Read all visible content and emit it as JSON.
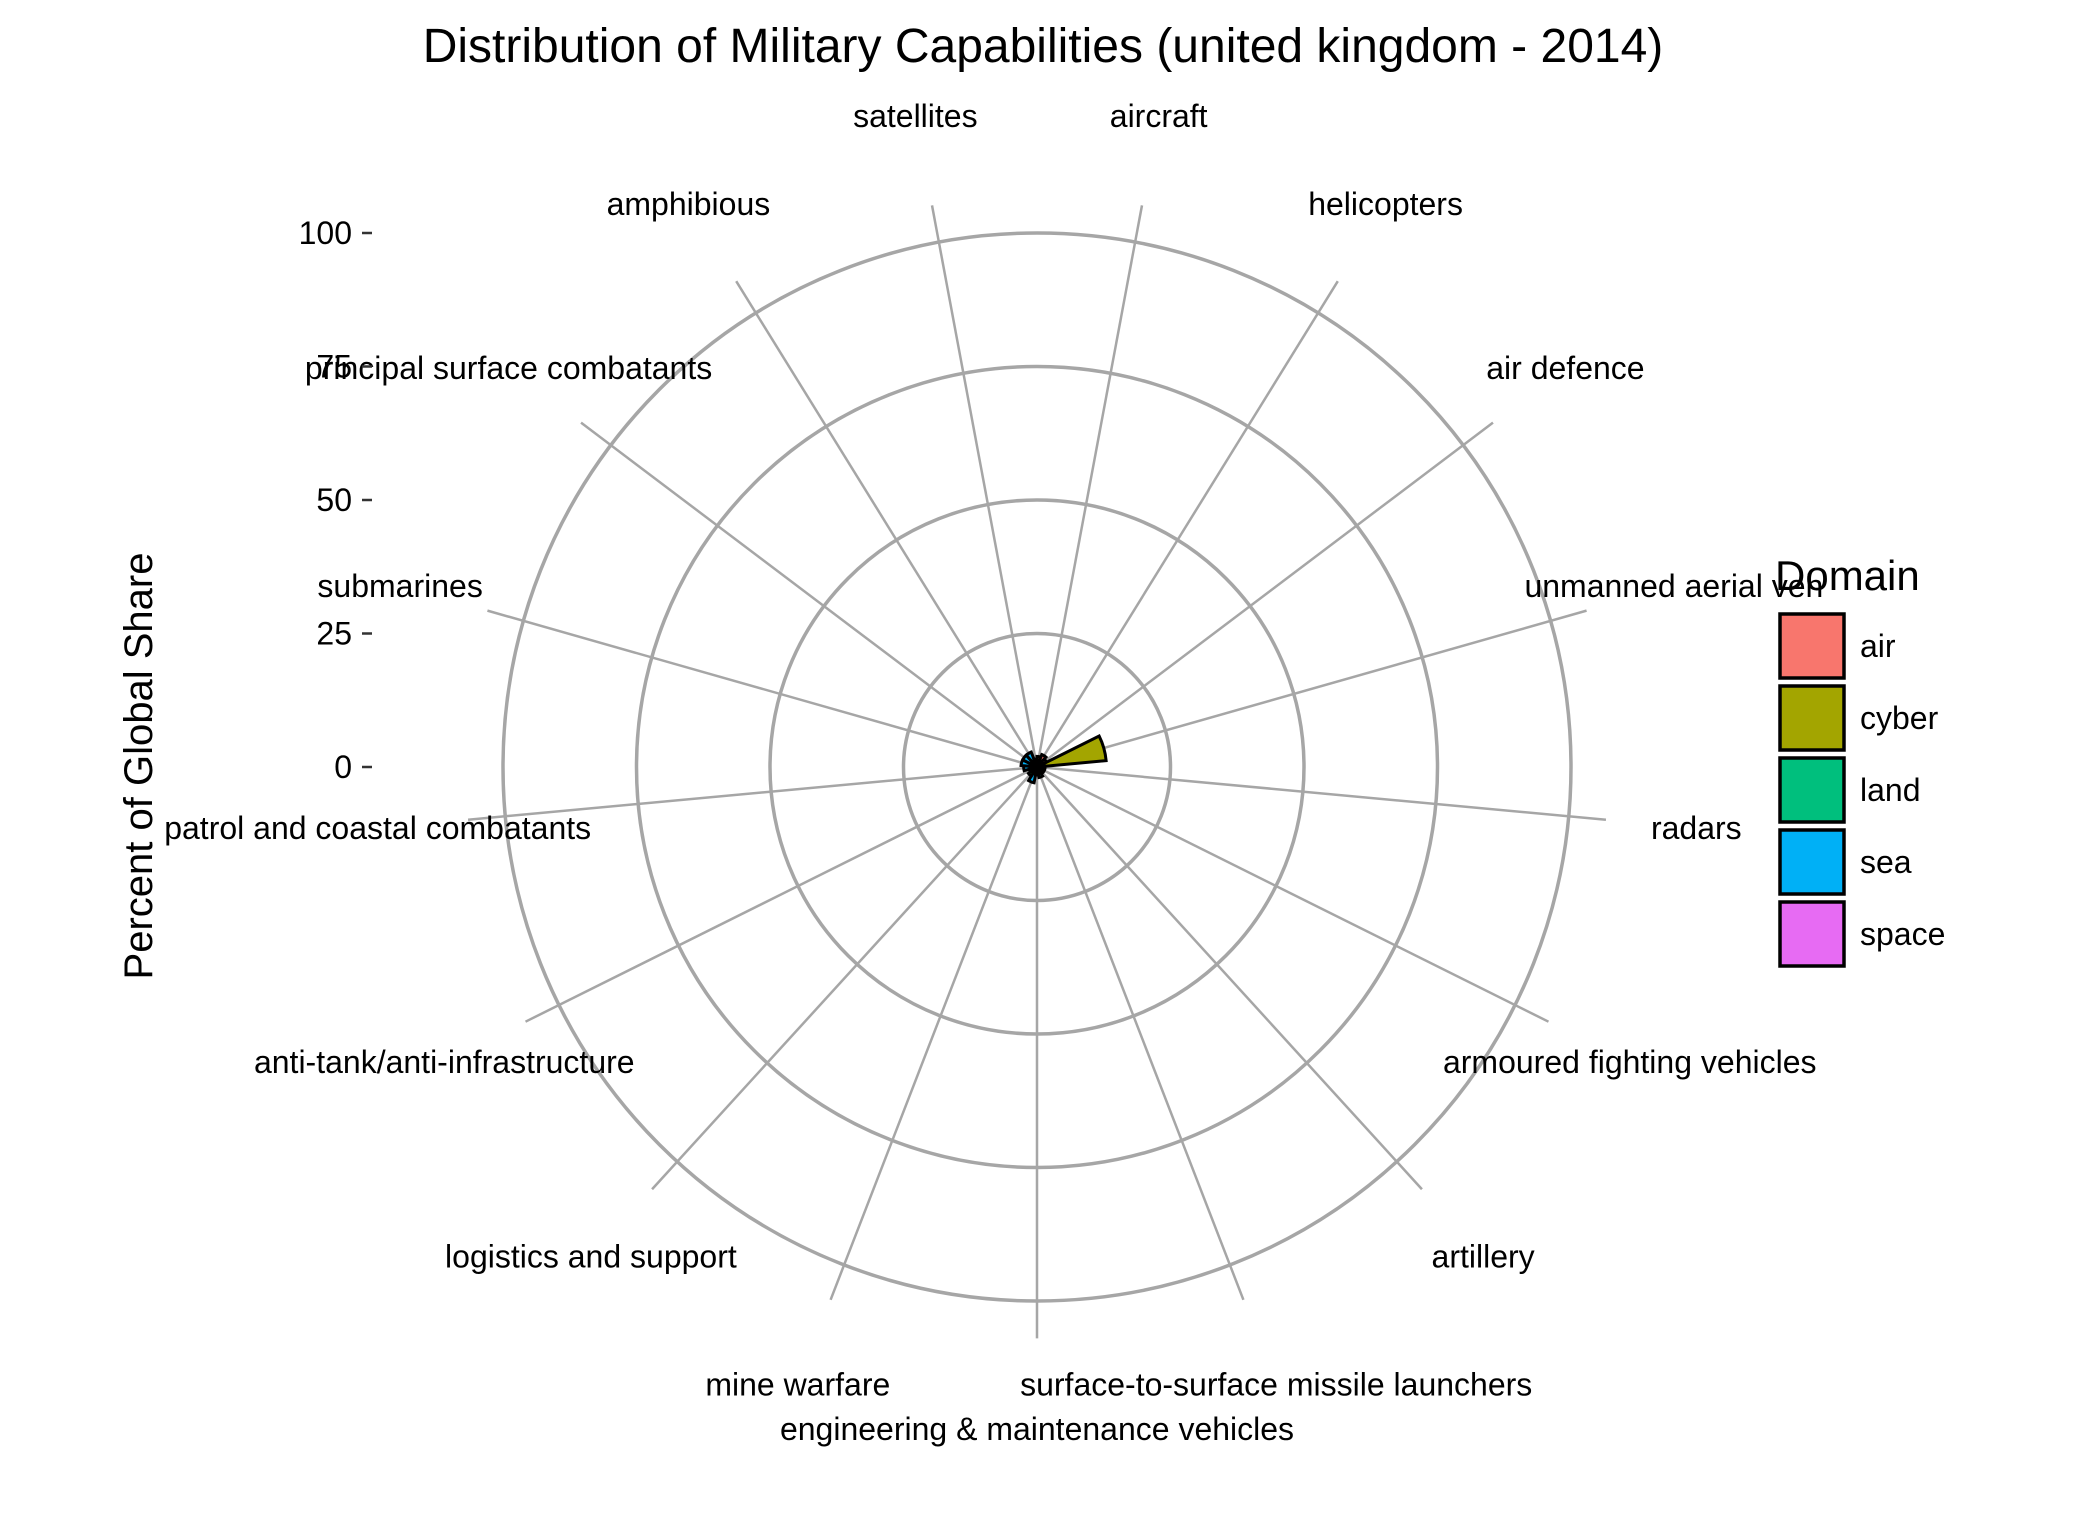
{
  "chart_data": {
    "type": "bar",
    "coord": "polar",
    "title": "Distribution of Military Capabilities (united kingdom - 2014)",
    "xlabel": "",
    "ylabel": "Percent of Global Share",
    "ylim": [
      0,
      100
    ],
    "yticks": [
      0,
      25,
      50,
      75,
      100
    ],
    "grid": true,
    "legend": {
      "title": "Domain",
      "placement": "right",
      "entries": [
        {
          "name": "air",
          "color": "#F8766D"
        },
        {
          "name": "cyber",
          "color": "#A3A500"
        },
        {
          "name": "land",
          "color": "#00BF7D"
        },
        {
          "name": "sea",
          "color": "#00B0F6"
        },
        {
          "name": "space",
          "color": "#E76BF3"
        }
      ]
    },
    "categories": [
      "aircraft",
      "helicopters",
      "air defence",
      "unmanned aerial veh",
      "radars",
      "armoured fighting vehicles",
      "artillery",
      "surface-to-surface missile launchers",
      "engineering & maintenance vehicles",
      "mine warfare",
      "logistics and support",
      "anti-tank/anti-infrastructure",
      "patrol and coastal combatants",
      "submarines",
      "principal surface combatants",
      "amphibious",
      "satellites"
    ],
    "domains": [
      "air",
      "air",
      "air",
      "cyber",
      "cyber",
      "land",
      "land",
      "land",
      "land",
      "sea",
      "land",
      "land",
      "sea",
      "sea",
      "sea",
      "sea",
      "space"
    ],
    "values": [
      2,
      2.5,
      2,
      13,
      1.5,
      1.5,
      1.5,
      2,
      1.5,
      3,
      2,
      1.5,
      2.5,
      3,
      3,
      3,
      1.5
    ]
  }
}
